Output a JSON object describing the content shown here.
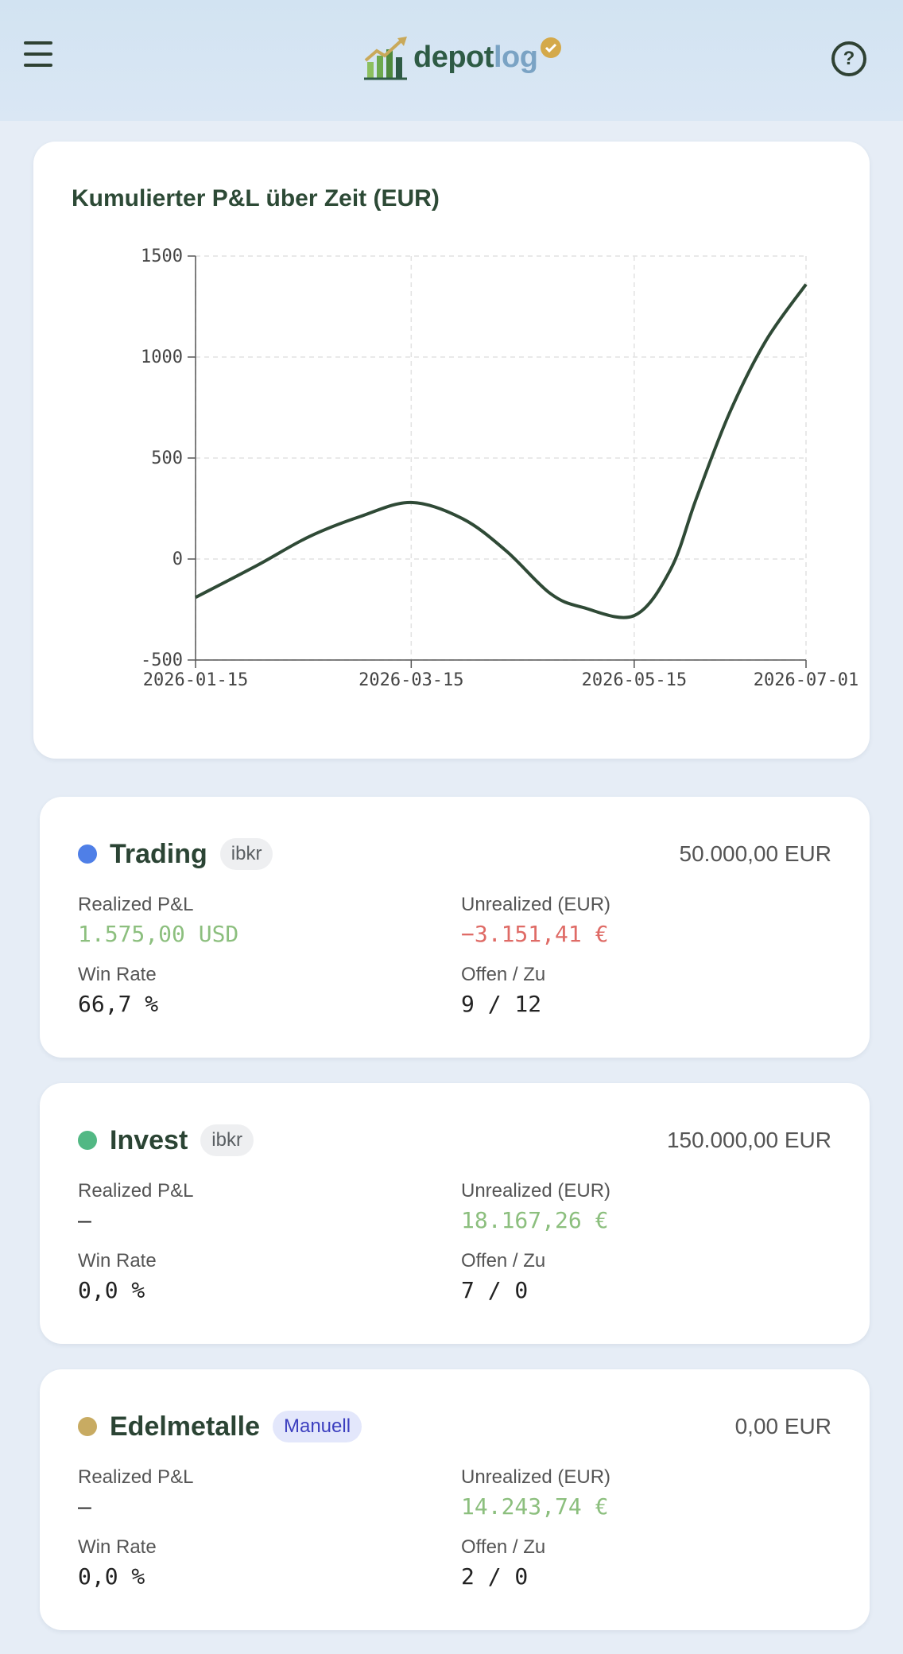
{
  "header": {
    "logo_primary": "depot",
    "logo_secondary": "log",
    "menu_icon": "hamburger-icon",
    "help_icon": "question-circle-icon",
    "help_glyph": "?"
  },
  "chart": {
    "title": "Kumulierter P&L über Zeit (EUR)",
    "y_ticks": [
      "1500",
      "1000",
      "500",
      "0",
      "-500"
    ],
    "x_ticks": [
      "2026-01-15",
      "2026-03-15",
      "2026-05-15",
      "2026-07-01"
    ]
  },
  "chart_data": {
    "type": "line",
    "title": "Kumulierter P&L über Zeit (EUR)",
    "xlabel": "",
    "ylabel": "",
    "ylim": [
      -500,
      1500
    ],
    "xlim": [
      "2026-01-15",
      "2026-07-01"
    ],
    "x_ticks": [
      "2026-01-15",
      "2026-03-15",
      "2026-05-15",
      "2026-07-01"
    ],
    "y_ticks": [
      -500,
      0,
      500,
      1000,
      1500
    ],
    "grid": true,
    "color": "#2f4a36",
    "series": [
      {
        "x": [
          "2026-01-15",
          "2026-02-01",
          "2026-02-15",
          "2026-03-01",
          "2026-03-15",
          "2026-03-29",
          "2026-04-10",
          "2026-04-22",
          "2026-05-01",
          "2026-05-15",
          "2026-05-25",
          "2026-06-01",
          "2026-06-10",
          "2026-06-20",
          "2026-07-01"
        ],
        "y": [
          -190,
          -30,
          110,
          210,
          280,
          200,
          40,
          -170,
          -240,
          -280,
          -50,
          300,
          720,
          1080,
          1360
        ]
      }
    ]
  },
  "accounts": [
    {
      "name": "Trading",
      "badge": "ibkr",
      "badge_type": "default",
      "dot_color": "#4f7fe7",
      "balance": "50.000,00 EUR",
      "realized_label": "Realized P&L",
      "realized_value": "1.575,00 USD",
      "unrealized_label": "Unrealized (EUR)",
      "unrealized_value": "−3.151,41 €",
      "winrate_label": "Win Rate",
      "winrate_value": "66,7 %",
      "openclosed_label": "Offen / Zu",
      "openclosed_value": "9 / 12"
    },
    {
      "name": "Invest",
      "badge": "ibkr",
      "badge_type": "default",
      "dot_color": "#52b884",
      "balance": "150.000,00 EUR",
      "realized_label": "Realized P&L",
      "realized_value": "—",
      "unrealized_label": "Unrealized (EUR)",
      "unrealized_value": "18.167,26 €",
      "winrate_label": "Win Rate",
      "winrate_value": "0,0 %",
      "openclosed_label": "Offen / Zu",
      "openclosed_value": "7 / 0"
    },
    {
      "name": "Edelmetalle",
      "badge": "Manuell",
      "badge_type": "manual",
      "dot_color": "#c8ab62",
      "balance": "0,00 EUR",
      "realized_label": "Realized P&L",
      "realized_value": "—",
      "unrealized_label": "Unrealized (EUR)",
      "unrealized_value": "14.243,74 €",
      "winrate_label": "Win Rate",
      "winrate_value": "0,0 %",
      "openclosed_label": "Offen / Zu",
      "openclosed_value": "2 / 0"
    }
  ]
}
